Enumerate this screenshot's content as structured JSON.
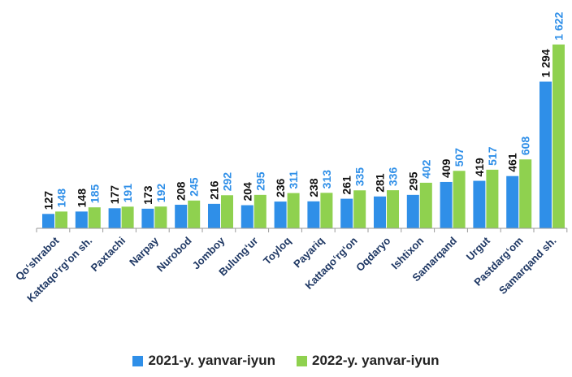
{
  "chart_data": {
    "type": "bar",
    "categories": [
      "Qo‘shrabot",
      "Kattaqo‘rg‘on sh.",
      "Paxtachi",
      "Narpay",
      "Nurobod",
      "Jomboy",
      "Bulung‘ur",
      "Toyloq",
      "Payariq",
      "Kattaqo‘rg‘on",
      "Oqdaryo",
      "Ishtixon",
      "Samarqand",
      "Urgut",
      "Pastdarg‘om",
      "Samarqand sh."
    ],
    "series": [
      {
        "name": "2021-y. yanvar-iyun",
        "color": "#2f8fe8",
        "label_color": "#111111",
        "values": [
          127,
          148,
          177,
          173,
          208,
          216,
          204,
          236,
          238,
          261,
          281,
          295,
          409,
          419,
          461,
          1294
        ],
        "labels": [
          "127",
          "148",
          "177",
          "173",
          "208",
          "216",
          "204",
          "236",
          "238",
          "261",
          "281",
          "295",
          "409",
          "419",
          "461",
          "1 294"
        ]
      },
      {
        "name": "2022-y. yanvar-iyun",
        "color": "#8fd14f",
        "label_color": "#2f8fe8",
        "values": [
          148,
          185,
          191,
          192,
          245,
          292,
          295,
          311,
          313,
          335,
          336,
          402,
          507,
          517,
          608,
          1622
        ],
        "labels": [
          "148",
          "185",
          "191",
          "192",
          "245",
          "292",
          "295",
          "311",
          "313",
          "335",
          "336",
          "402",
          "507",
          "517",
          "608",
          "1 622"
        ]
      }
    ],
    "ylim": [
      0,
      1700
    ],
    "grid": false,
    "legend_position": "bottom",
    "title": "",
    "xlabel": "",
    "ylabel": ""
  }
}
